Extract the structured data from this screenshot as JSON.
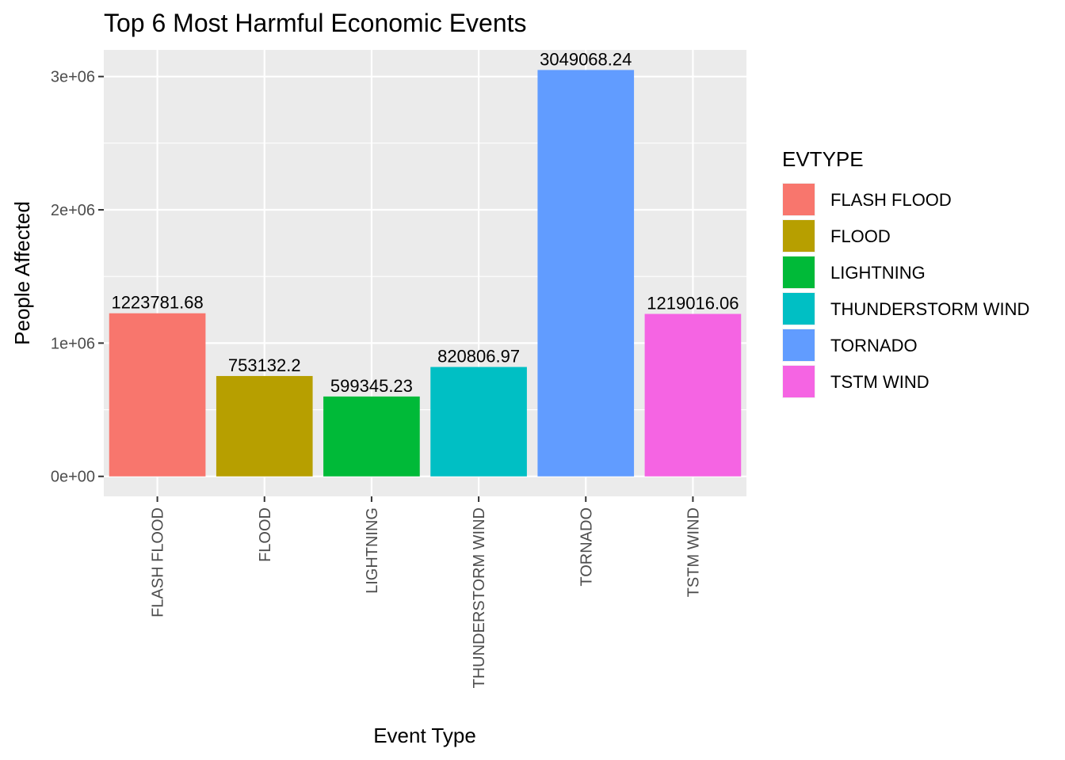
{
  "chart_data": {
    "type": "bar",
    "title": "Top 6 Most Harmful Economic Events",
    "xlabel": "Event Type",
    "ylabel": "People Affected",
    "categories": [
      "FLASH FLOOD",
      "FLOOD",
      "LIGHTNING",
      "THUNDERSTORM WIND",
      "TORNADO",
      "TSTM WIND"
    ],
    "values": [
      1223781.68,
      753132.2,
      599345.23,
      820806.97,
      3049068.24,
      1219016.06
    ],
    "value_labels": [
      "1223781.68",
      "753132.2",
      "599345.23",
      "820806.97",
      "3049068.24",
      "1219016.06"
    ],
    "colors": [
      "#F8766D",
      "#B79F00",
      "#00BA38",
      "#00BFC4",
      "#619CFF",
      "#F564E3"
    ],
    "ylim": [
      -150000,
      3200000
    ],
    "y_ticks": [
      0,
      1000000,
      2000000,
      3000000
    ],
    "y_tick_labels": [
      "0e+00",
      "1e+06",
      "2e+06",
      "3e+06"
    ],
    "grid": true,
    "legend": {
      "title": "EVTYPE",
      "placement": "right",
      "entries": [
        "FLASH FLOOD",
        "FLOOD",
        "LIGHTNING",
        "THUNDERSTORM WIND",
        "TORNADO",
        "TSTM WIND"
      ]
    },
    "panel_background": "#EBEBEB",
    "grid_color": "#FFFFFF",
    "tick_color": "#333333"
  }
}
